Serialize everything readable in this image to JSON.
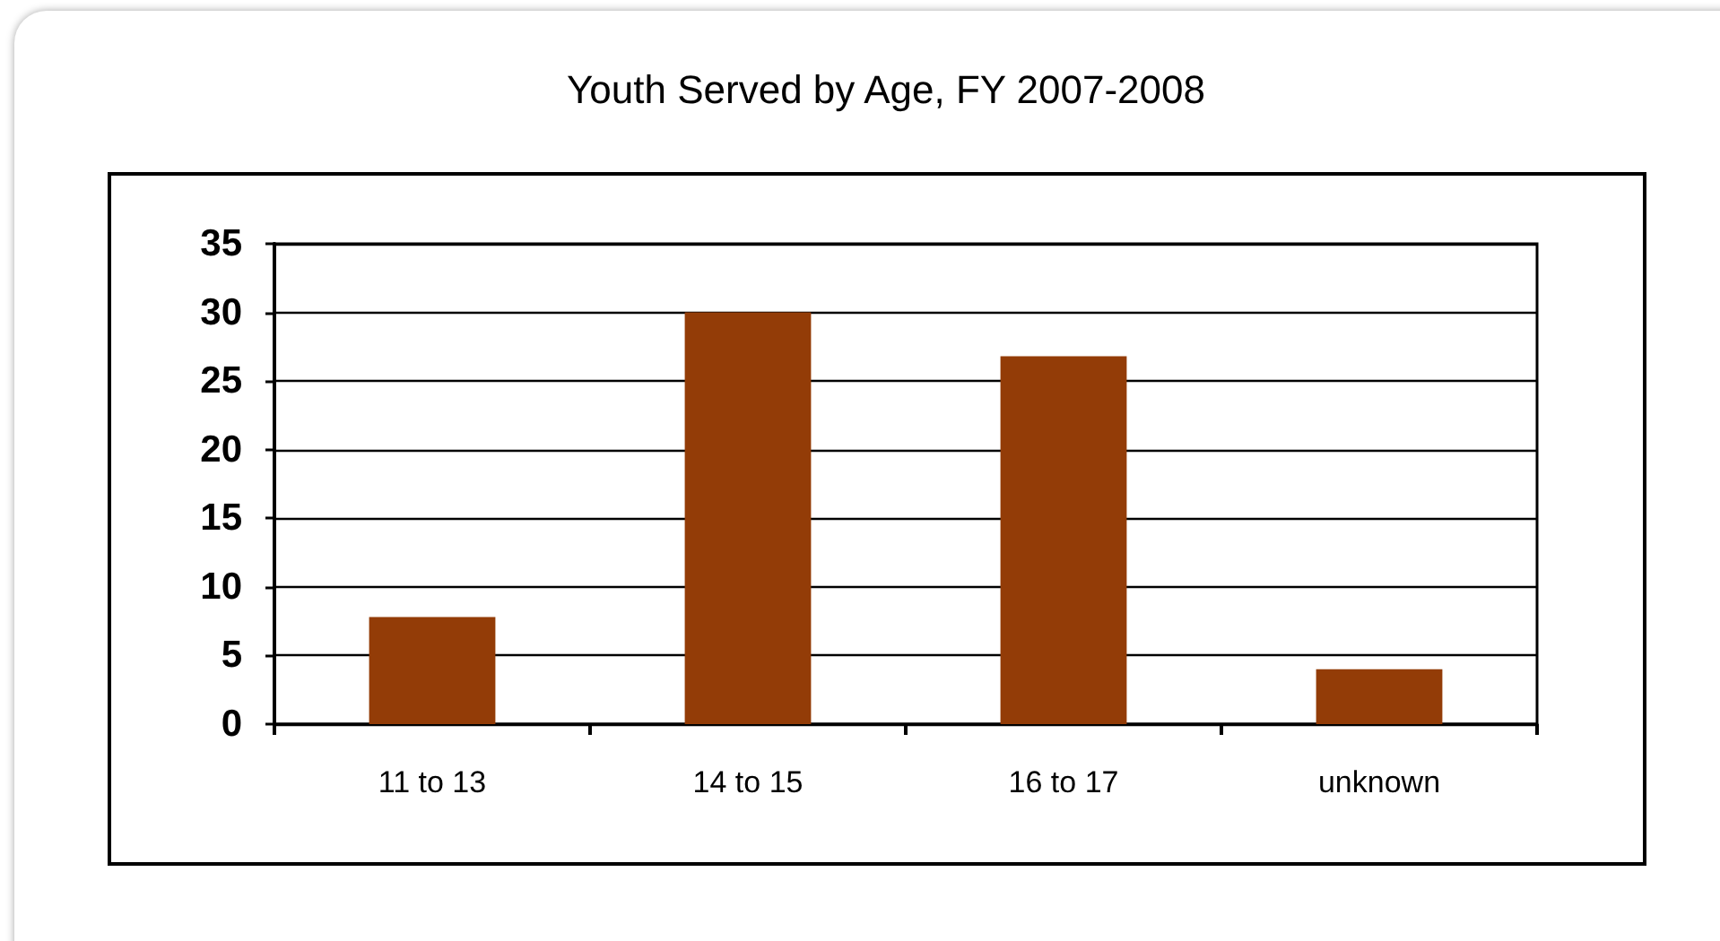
{
  "chart_data": {
    "type": "bar",
    "title": "Youth Served by Age, FY 2007-2008",
    "categories": [
      "11 to 13",
      "14 to 15",
      "16 to 17",
      "unknown"
    ],
    "values": [
      7.8,
      30,
      26.8,
      4
    ],
    "color": "#933c07",
    "ylim": [
      0,
      35
    ],
    "yticks": [
      0,
      5,
      10,
      15,
      20,
      25,
      30,
      35
    ],
    "grid": "y"
  }
}
